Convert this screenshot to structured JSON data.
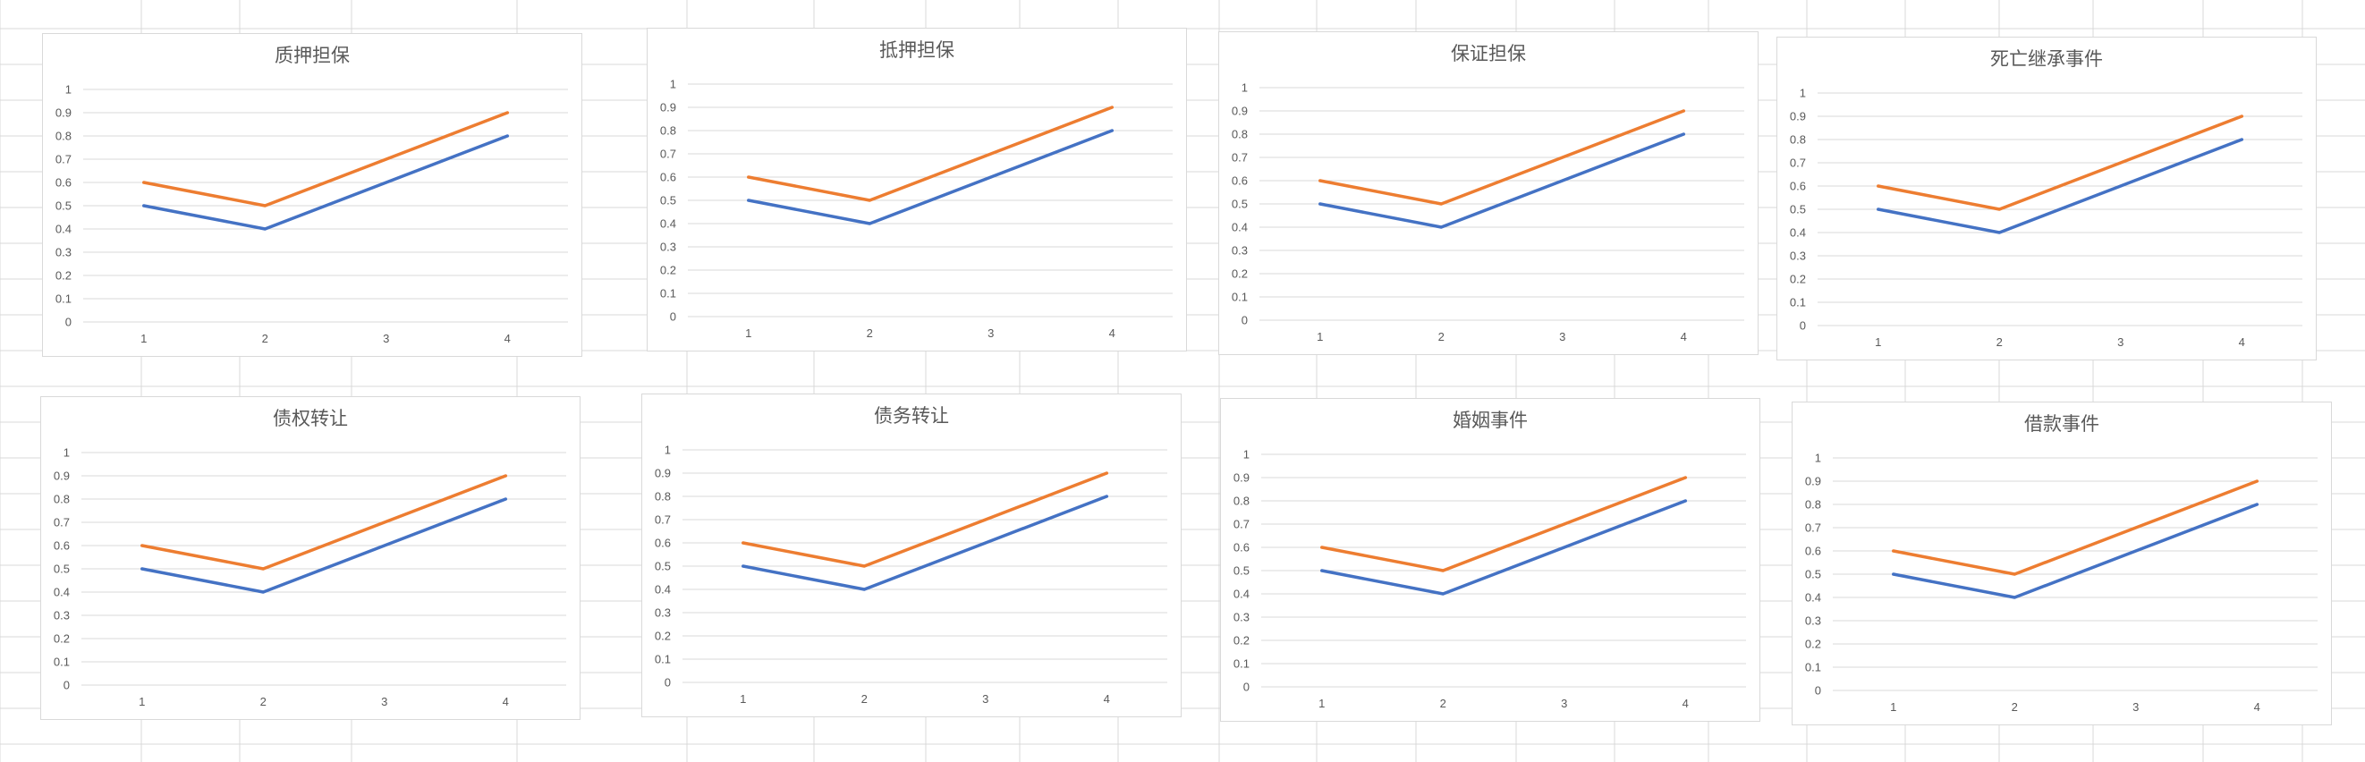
{
  "palette": {
    "background": "#ffffff",
    "sheet_grid": "#d9d9d9",
    "card_border": "#d9d9d9",
    "plot_gridline": "#d9d9d9",
    "text": "#595959",
    "series_blue": "#4472c4",
    "series_orange": "#ed7d31"
  },
  "chart_data": [
    {
      "type": "line",
      "title": "质押担保",
      "x": [
        1,
        2,
        3,
        4
      ],
      "categories": [
        "1",
        "2",
        "3",
        "4"
      ],
      "ylim": [
        0,
        1
      ],
      "yticks": [
        "0",
        "0.1",
        "0.2",
        "0.3",
        "0.4",
        "0.5",
        "0.6",
        "0.7",
        "0.8",
        "0.9",
        "1"
      ],
      "grid": true,
      "legend": "none",
      "series": [
        {
          "color": "#4472c4",
          "values": [
            0.5,
            0.4,
            0.6,
            0.8
          ]
        },
        {
          "color": "#ed7d31",
          "values": [
            0.6,
            0.5,
            0.7,
            0.9
          ]
        }
      ]
    },
    {
      "type": "line",
      "title": "抵押担保",
      "x": [
        1,
        2,
        3,
        4
      ],
      "categories": [
        "1",
        "2",
        "3",
        "4"
      ],
      "ylim": [
        0,
        1
      ],
      "yticks": [
        "0",
        "0.1",
        "0.2",
        "0.3",
        "0.4",
        "0.5",
        "0.6",
        "0.7",
        "0.8",
        "0.9",
        "1"
      ],
      "grid": true,
      "legend": "none",
      "series": [
        {
          "color": "#4472c4",
          "values": [
            0.5,
            0.4,
            0.6,
            0.8
          ]
        },
        {
          "color": "#ed7d31",
          "values": [
            0.6,
            0.5,
            0.7,
            0.9
          ]
        }
      ]
    },
    {
      "type": "line",
      "title": "保证担保",
      "x": [
        1,
        2,
        3,
        4
      ],
      "categories": [
        "1",
        "2",
        "3",
        "4"
      ],
      "ylim": [
        0,
        1
      ],
      "yticks": [
        "0",
        "0.1",
        "0.2",
        "0.3",
        "0.4",
        "0.5",
        "0.6",
        "0.7",
        "0.8",
        "0.9",
        "1"
      ],
      "grid": true,
      "legend": "none",
      "series": [
        {
          "color": "#4472c4",
          "values": [
            0.5,
            0.4,
            0.6,
            0.8
          ]
        },
        {
          "color": "#ed7d31",
          "values": [
            0.6,
            0.5,
            0.7,
            0.9
          ]
        }
      ]
    },
    {
      "type": "line",
      "title": "死亡继承事件",
      "x": [
        1,
        2,
        3,
        4
      ],
      "categories": [
        "1",
        "2",
        "3",
        "4"
      ],
      "ylim": [
        0,
        1
      ],
      "yticks": [
        "0",
        "0.1",
        "0.2",
        "0.3",
        "0.4",
        "0.5",
        "0.6",
        "0.7",
        "0.8",
        "0.9",
        "1"
      ],
      "grid": true,
      "legend": "none",
      "series": [
        {
          "color": "#4472c4",
          "values": [
            0.5,
            0.4,
            0.6,
            0.8
          ]
        },
        {
          "color": "#ed7d31",
          "values": [
            0.6,
            0.5,
            0.7,
            0.9
          ]
        }
      ]
    },
    {
      "type": "line",
      "title": "债权转让",
      "x": [
        1,
        2,
        3,
        4
      ],
      "categories": [
        "1",
        "2",
        "3",
        "4"
      ],
      "ylim": [
        0,
        1
      ],
      "yticks": [
        "0",
        "0.1",
        "0.2",
        "0.3",
        "0.4",
        "0.5",
        "0.6",
        "0.7",
        "0.8",
        "0.9",
        "1"
      ],
      "grid": true,
      "legend": "none",
      "series": [
        {
          "color": "#4472c4",
          "values": [
            0.5,
            0.4,
            0.6,
            0.8
          ]
        },
        {
          "color": "#ed7d31",
          "values": [
            0.6,
            0.5,
            0.7,
            0.9
          ]
        }
      ]
    },
    {
      "type": "line",
      "title": "债务转让",
      "x": [
        1,
        2,
        3,
        4
      ],
      "categories": [
        "1",
        "2",
        "3",
        "4"
      ],
      "ylim": [
        0,
        1
      ],
      "yticks": [
        "0",
        "0.1",
        "0.2",
        "0.3",
        "0.4",
        "0.5",
        "0.6",
        "0.7",
        "0.8",
        "0.9",
        "1"
      ],
      "grid": true,
      "legend": "none",
      "series": [
        {
          "color": "#4472c4",
          "values": [
            0.5,
            0.4,
            0.6,
            0.8
          ]
        },
        {
          "color": "#ed7d31",
          "values": [
            0.6,
            0.5,
            0.7,
            0.9
          ]
        }
      ]
    },
    {
      "type": "line",
      "title": "婚姻事件",
      "x": [
        1,
        2,
        3,
        4
      ],
      "categories": [
        "1",
        "2",
        "3",
        "4"
      ],
      "ylim": [
        0,
        1
      ],
      "yticks": [
        "0",
        "0.1",
        "0.2",
        "0.3",
        "0.4",
        "0.5",
        "0.6",
        "0.7",
        "0.8",
        "0.9",
        "1"
      ],
      "grid": true,
      "legend": "none",
      "series": [
        {
          "color": "#4472c4",
          "values": [
            0.5,
            0.4,
            0.6,
            0.8
          ]
        },
        {
          "color": "#ed7d31",
          "values": [
            0.6,
            0.5,
            0.7,
            0.9
          ]
        }
      ]
    },
    {
      "type": "line",
      "title": "借款事件",
      "x": [
        1,
        2,
        3,
        4
      ],
      "categories": [
        "1",
        "2",
        "3",
        "4"
      ],
      "ylim": [
        0,
        1
      ],
      "yticks": [
        "0",
        "0.1",
        "0.2",
        "0.3",
        "0.4",
        "0.5",
        "0.6",
        "0.7",
        "0.8",
        "0.9",
        "1"
      ],
      "grid": true,
      "legend": "none",
      "series": [
        {
          "color": "#4472c4",
          "values": [
            0.5,
            0.4,
            0.6,
            0.8
          ]
        },
        {
          "color": "#ed7d31",
          "values": [
            0.6,
            0.5,
            0.7,
            0.9
          ]
        }
      ]
    }
  ]
}
